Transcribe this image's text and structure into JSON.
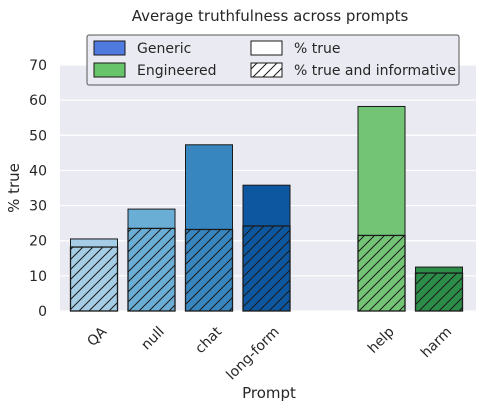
{
  "chart_data": {
    "type": "bar",
    "title": "Average truthfulness across prompts",
    "xlabel": "Prompt",
    "ylabel": "% true",
    "ylim": [
      0,
      70
    ],
    "yticks": [
      0,
      10,
      20,
      30,
      40,
      50,
      60,
      70
    ],
    "grid": true,
    "legend_position": "top",
    "categories": [
      "QA",
      "null",
      "chat",
      "long-form",
      "help",
      "harm"
    ],
    "groups": [
      "Generic",
      "Generic",
      "Generic",
      "Generic",
      "Engineered",
      "Engineered"
    ],
    "series": [
      {
        "name": "% true",
        "values": [
          20.5,
          29,
          47.3,
          35.8,
          58.2,
          12.5
        ]
      },
      {
        "name": "% true and informative",
        "values": [
          18.2,
          23.5,
          23.2,
          24.2,
          21.5,
          10.8
        ]
      }
    ],
    "bar_colors": [
      "#a6cde6",
      "#6aaed6",
      "#3886c0",
      "#0d57a1",
      "#74c476",
      "#2b8d48"
    ],
    "legend": [
      {
        "label": "Generic",
        "kind": "fill",
        "color": "#4f7be0"
      },
      {
        "label": "% true",
        "kind": "fill",
        "color": "#ffffff"
      },
      {
        "label": "Engineered",
        "kind": "fill",
        "color": "#68c46a"
      },
      {
        "label": "% true and informative",
        "kind": "hatch",
        "color": "#ffffff"
      }
    ]
  }
}
